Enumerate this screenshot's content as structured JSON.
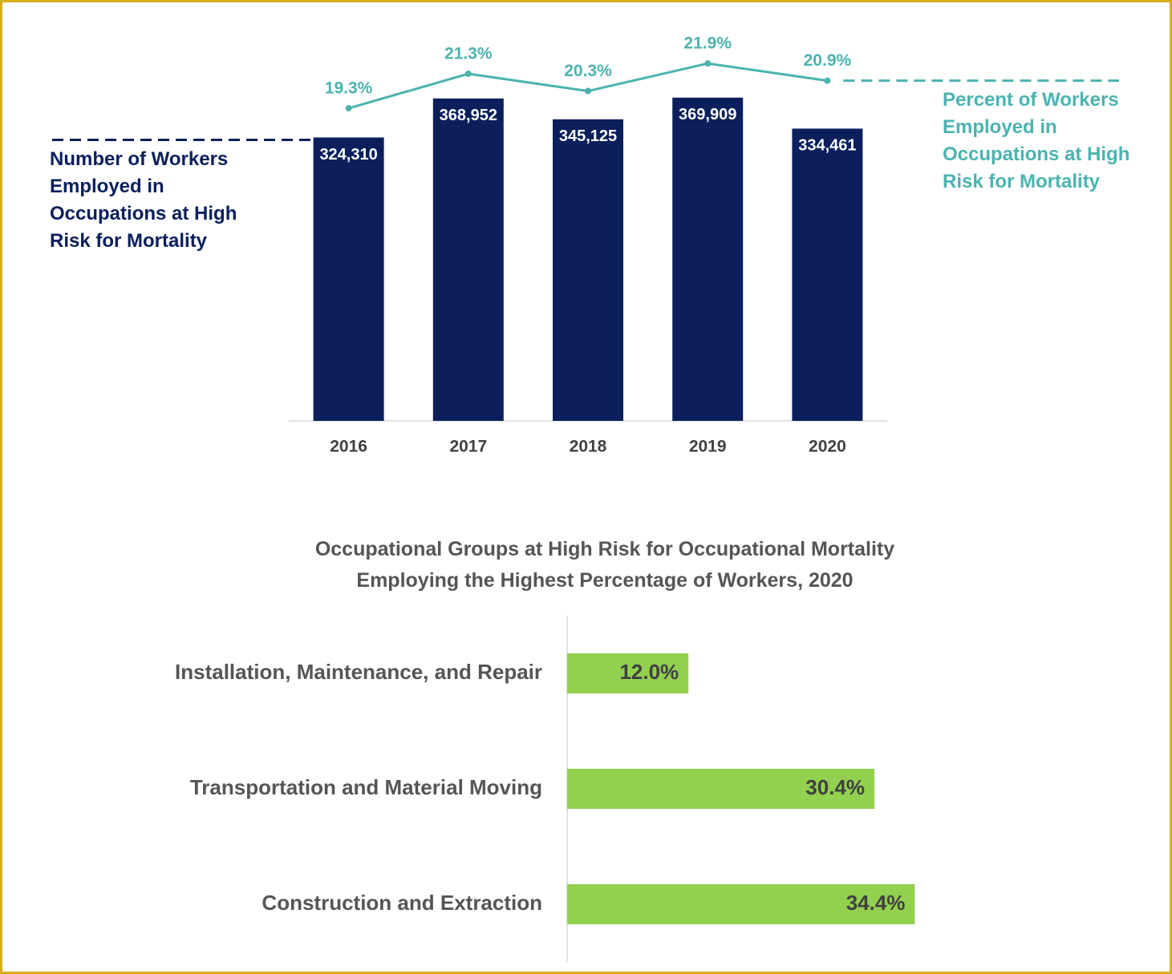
{
  "chart_data": [
    {
      "type": "bar",
      "categories": [
        "2016",
        "2017",
        "2018",
        "2019",
        "2020"
      ],
      "series": [
        {
          "name": "Number of Workers Employed in Occupations at High Risk for Mortality",
          "type": "bar",
          "color": "#0b1f5c",
          "values": [
            324310,
            368952,
            345125,
            369909,
            334461
          ],
          "value_labels": [
            "324,310",
            "368,952",
            "345,125",
            "369,909",
            "334,461"
          ]
        },
        {
          "name": "Percent of Workers Employed in Occupations at High Risk for Mortality",
          "type": "line",
          "axis": "y2",
          "color": "#4bb3b0",
          "values": [
            19.3,
            21.3,
            20.3,
            21.9,
            20.9
          ],
          "value_labels": [
            "19.3%",
            "21.3%",
            "20.3%",
            "21.9%",
            "20.9%"
          ]
        }
      ],
      "ylim": [
        0,
        400000
      ],
      "y2lim": [
        0,
        25
      ],
      "grid": false
    },
    {
      "type": "hbar",
      "title": "Occupational Groups at High Risk for Occupational Mortality Employing the Highest Percentage of Workers, 2020",
      "categories": [
        "Installation, Maintenance, and Repair",
        "Transportation and Material Moving",
        "Construction and Extraction"
      ],
      "values": [
        12.0,
        30.4,
        34.4
      ],
      "value_labels": [
        "12.0%",
        "30.4%",
        "34.4%"
      ],
      "color": "#92d050",
      "xlim": [
        0,
        40
      ],
      "grid": false
    }
  ]
}
